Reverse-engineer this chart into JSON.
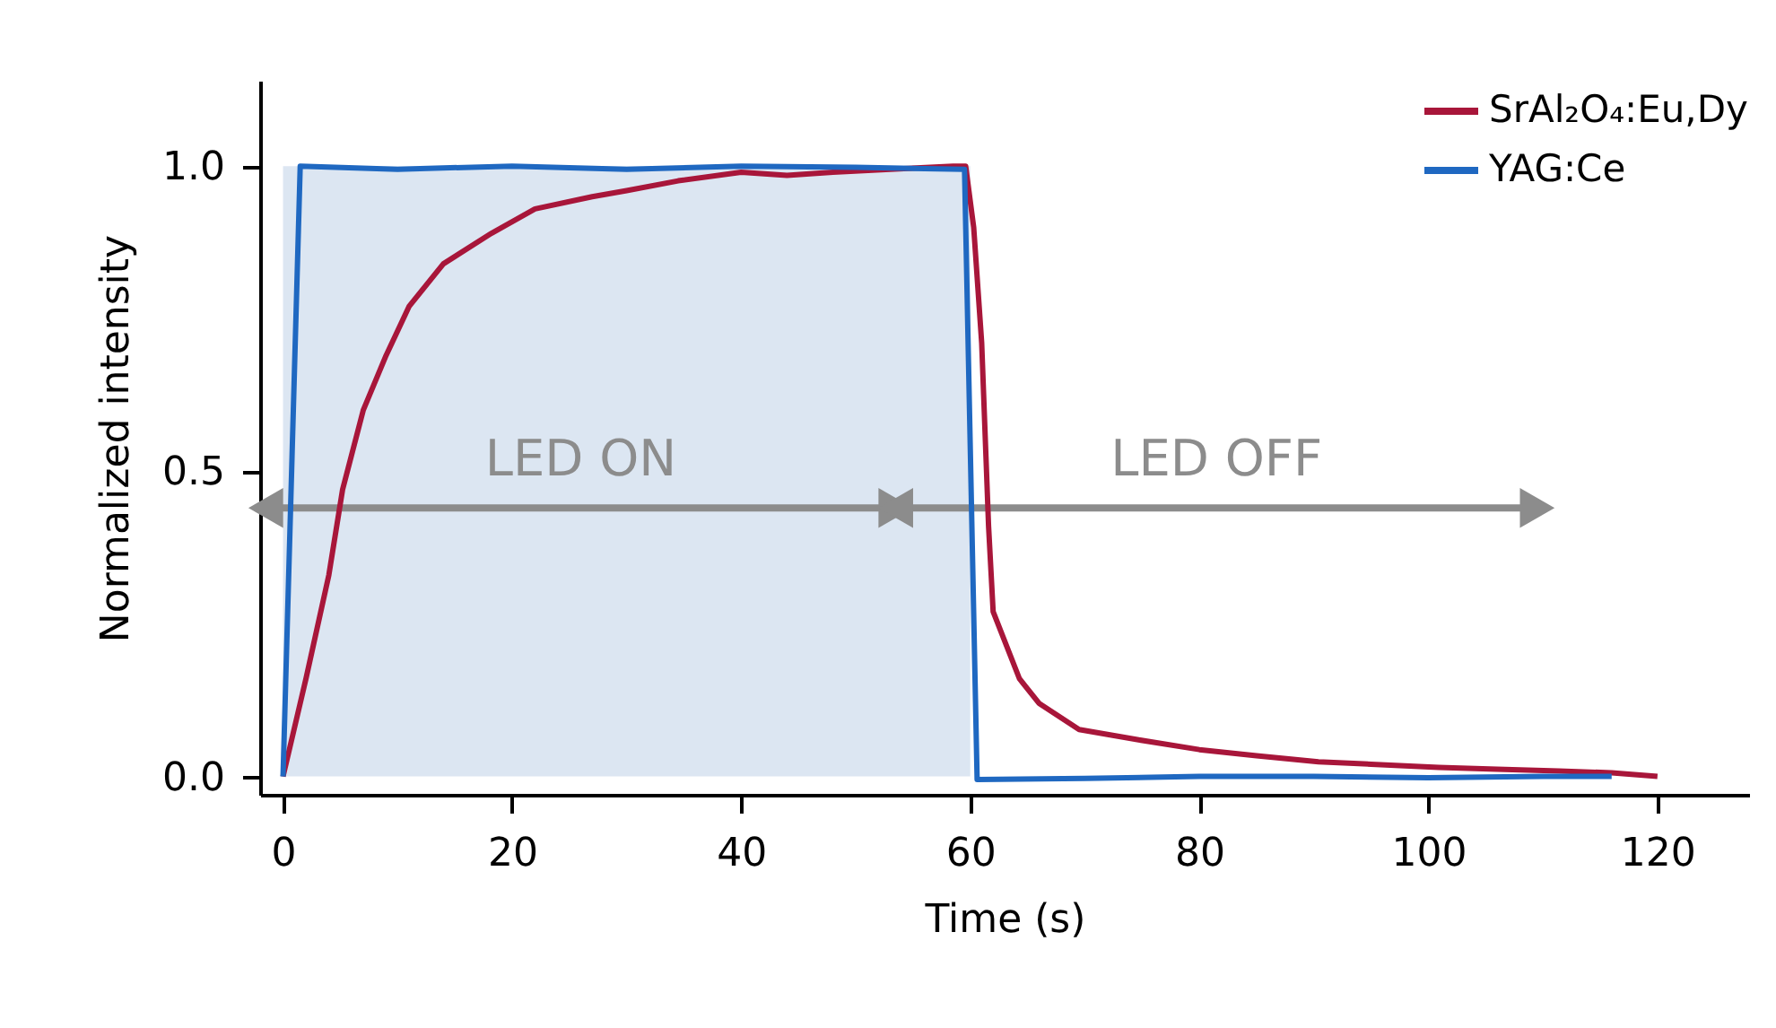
{
  "chart_data": {
    "type": "line",
    "xlabel": "Time (s)",
    "ylabel": "Normalized intensity",
    "xlim": [
      -2,
      128
    ],
    "ylim": [
      -0.03,
      1.14
    ],
    "xticks": [
      0,
      20,
      40,
      60,
      80,
      100,
      120
    ],
    "yticks": [
      {
        "value": 0,
        "label": "0.0"
      },
      {
        "value": 0.5,
        "label": "0.5"
      },
      {
        "value": 1,
        "label": "1.0"
      }
    ],
    "grid": false,
    "legend": "top right",
    "line_style": "solid",
    "marker": "none",
    "annotations": [
      "LED ON",
      "LED OFF"
    ],
    "series": [
      {
        "type": "area",
        "color": "#dce6f2",
        "x": [
          0,
          20,
          40,
          60
        ],
        "values": [
          1.0,
          1.0,
          1.0,
          1.0
        ]
      },
      {
        "type": "line",
        "color": "#8c8c8c",
        "marker": "triangle",
        "x": [
          -1,
          53
        ],
        "values": [
          0.44,
          0.44
        ]
      },
      {
        "type": "line",
        "color": "#8c8c8c",
        "marker": "triangle",
        "x": [
          54,
          109
        ],
        "values": [
          0.44,
          0.44
        ]
      },
      {
        "name": "SrAl₂O₄:Eu,Dy",
        "color": "#a8163a",
        "x": [
          0,
          2,
          4,
          5.2,
          7,
          9,
          11,
          14,
          18.2,
          22,
          27,
          30,
          34.5,
          40,
          44,
          48,
          53,
          58.5,
          59.6,
          60.3,
          61,
          61.6,
          62,
          64.3,
          66,
          69.5,
          74.7,
          80,
          85,
          90.4,
          95,
          100.9,
          106,
          111.4,
          116,
          120
        ],
        "values": [
          0,
          0.16,
          0.33,
          0.47,
          0.6,
          0.69,
          0.77,
          0.84,
          0.89,
          0.93,
          0.95,
          0.96,
          0.976,
          0.99,
          0.985,
          0.99,
          0.995,
          1.0,
          1.0,
          0.9,
          0.71,
          0.41,
          0.27,
          0.16,
          0.12,
          0.077,
          0.06,
          0.044,
          0.034,
          0.024,
          0.02,
          0.015,
          0.012,
          0.009,
          0.006,
          0.0
        ]
      },
      {
        "name": "YAG:Ce",
        "color": "#1f68c1",
        "x": [
          0,
          1.5,
          10,
          20,
          30,
          40,
          50,
          59.5,
          60.6,
          70,
          80,
          90,
          100,
          110,
          116
        ],
        "values": [
          0,
          1.0,
          0.995,
          1.0,
          0.995,
          1.0,
          0.998,
          0.995,
          -0.005,
          -0.003,
          0.0,
          0.0,
          -0.002,
          0.0,
          0.0
        ]
      }
    ]
  }
}
